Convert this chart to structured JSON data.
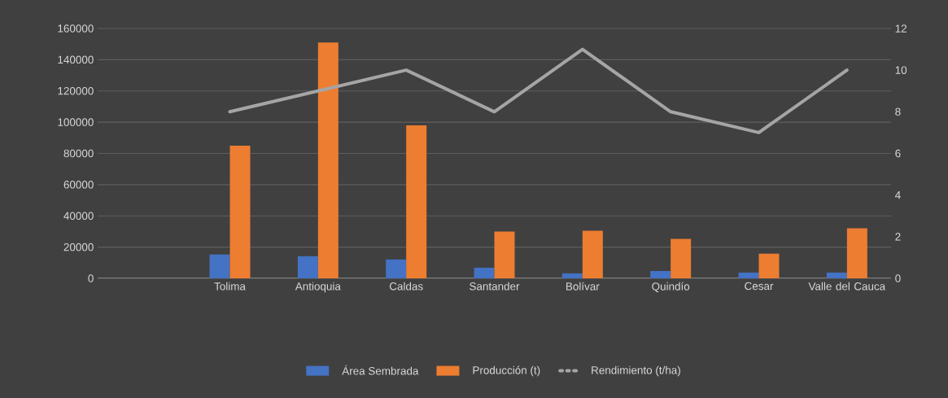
{
  "chart_data": {
    "type": "bar",
    "categories": [
      null,
      "Tolima",
      "Antioquia",
      "Caldas",
      "Santander",
      "Bolívar",
      "Quindío",
      "Cesar",
      "Valle del Cauca"
    ],
    "series": [
      {
        "name": "Área Sembrada",
        "color": "#4472c4",
        "values": [
          null,
          15300,
          14200,
          12100,
          6800,
          3200,
          4700,
          3700,
          3700
        ]
      },
      {
        "name": "Producción (t)",
        "color": "#ed7d31",
        "values": [
          null,
          85000,
          151000,
          98000,
          30000,
          30500,
          25300,
          15800,
          32100
        ]
      },
      {
        "name": "Rendimiento (t/ha)",
        "color": "#a5a5a5",
        "type": "line",
        "axis": "y2",
        "marker": "none",
        "values": [
          null,
          8,
          9,
          10,
          8,
          11,
          8,
          7,
          10
        ]
      }
    ],
    "ylim": [
      0,
      160000
    ],
    "yticks": [
      0,
      20000,
      40000,
      60000,
      80000,
      100000,
      120000,
      140000,
      160000
    ],
    "y2lim": [
      0,
      12
    ],
    "y2ticks": [
      0,
      2,
      4,
      6,
      8,
      10,
      12
    ],
    "grid": "y",
    "legend": "bottom"
  }
}
